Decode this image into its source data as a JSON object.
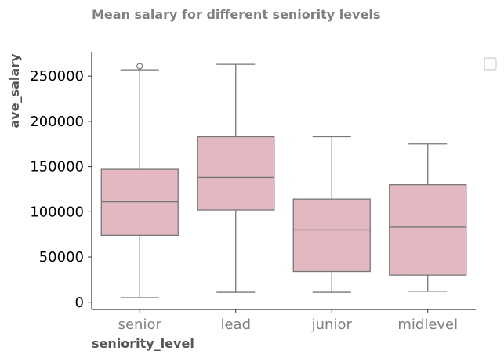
{
  "chart_data": {
    "type": "box",
    "title": "Mean salary for different seniority levels",
    "xlabel": "seniority_level",
    "ylabel": "ave_salary",
    "categories": [
      "senior",
      "lead",
      "junior",
      "midlevel"
    ],
    "yticks": [
      0,
      50000,
      100000,
      150000,
      200000,
      250000
    ],
    "ytick_labels": [
      "0",
      "50000",
      "100000",
      "150000",
      "200000",
      "250000"
    ],
    "ylim": [
      -8000,
      277000
    ],
    "grid": false,
    "legend": "top-right (empty)",
    "box_color": "#e3b8c0",
    "line_color": "#777777",
    "boxes": [
      {
        "category": "senior",
        "whisker_low": 5000,
        "q1": 74000,
        "median": 111000,
        "q3": 147000,
        "whisker_high": 257000,
        "outliers": [
          261000
        ]
      },
      {
        "category": "lead",
        "whisker_low": 11000,
        "q1": 102000,
        "median": 138000,
        "q3": 183000,
        "whisker_high": 263000,
        "outliers": []
      },
      {
        "category": "junior",
        "whisker_low": 11000,
        "q1": 34000,
        "median": 80000,
        "q3": 114000,
        "whisker_high": 183000,
        "outliers": []
      },
      {
        "category": "midlevel",
        "whisker_low": 12000,
        "q1": 30000,
        "median": 83000,
        "q3": 130000,
        "whisker_high": 175000,
        "outliers": []
      }
    ]
  }
}
